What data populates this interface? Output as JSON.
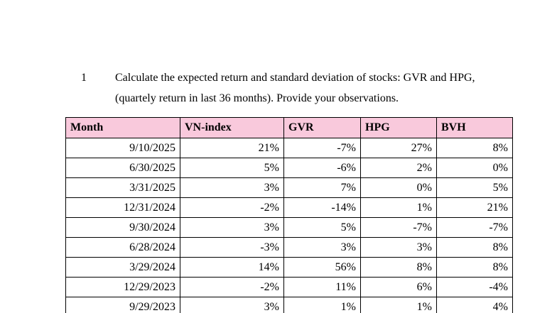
{
  "question": {
    "number": "1",
    "line1": "Calculate the expected return and standard deviation of stocks: GVR and HPG,",
    "line2": "(quartely return in last 36 months). Provide your observations."
  },
  "table": {
    "headers": [
      "Month",
      "VN-index",
      "GVR",
      "HPG",
      "BVH"
    ],
    "rows": [
      [
        "9/10/2025",
        "21%",
        "-7%",
        "27%",
        "8%"
      ],
      [
        "6/30/2025",
        "5%",
        "-6%",
        "2%",
        "0%"
      ],
      [
        "3/31/2025",
        "3%",
        "7%",
        "0%",
        "5%"
      ],
      [
        "12/31/2024",
        "-2%",
        "-14%",
        "1%",
        "21%"
      ],
      [
        "9/30/2024",
        "3%",
        "5%",
        "-7%",
        "-7%"
      ],
      [
        "6/28/2024",
        "-3%",
        "3%",
        "3%",
        "8%"
      ],
      [
        "3/29/2024",
        "14%",
        "56%",
        "8%",
        "8%"
      ],
      [
        "12/29/2023",
        "-2%",
        "11%",
        "6%",
        "-4%"
      ],
      [
        "9/29/2023",
        "3%",
        "1%",
        "1%",
        "4%"
      ]
    ]
  }
}
